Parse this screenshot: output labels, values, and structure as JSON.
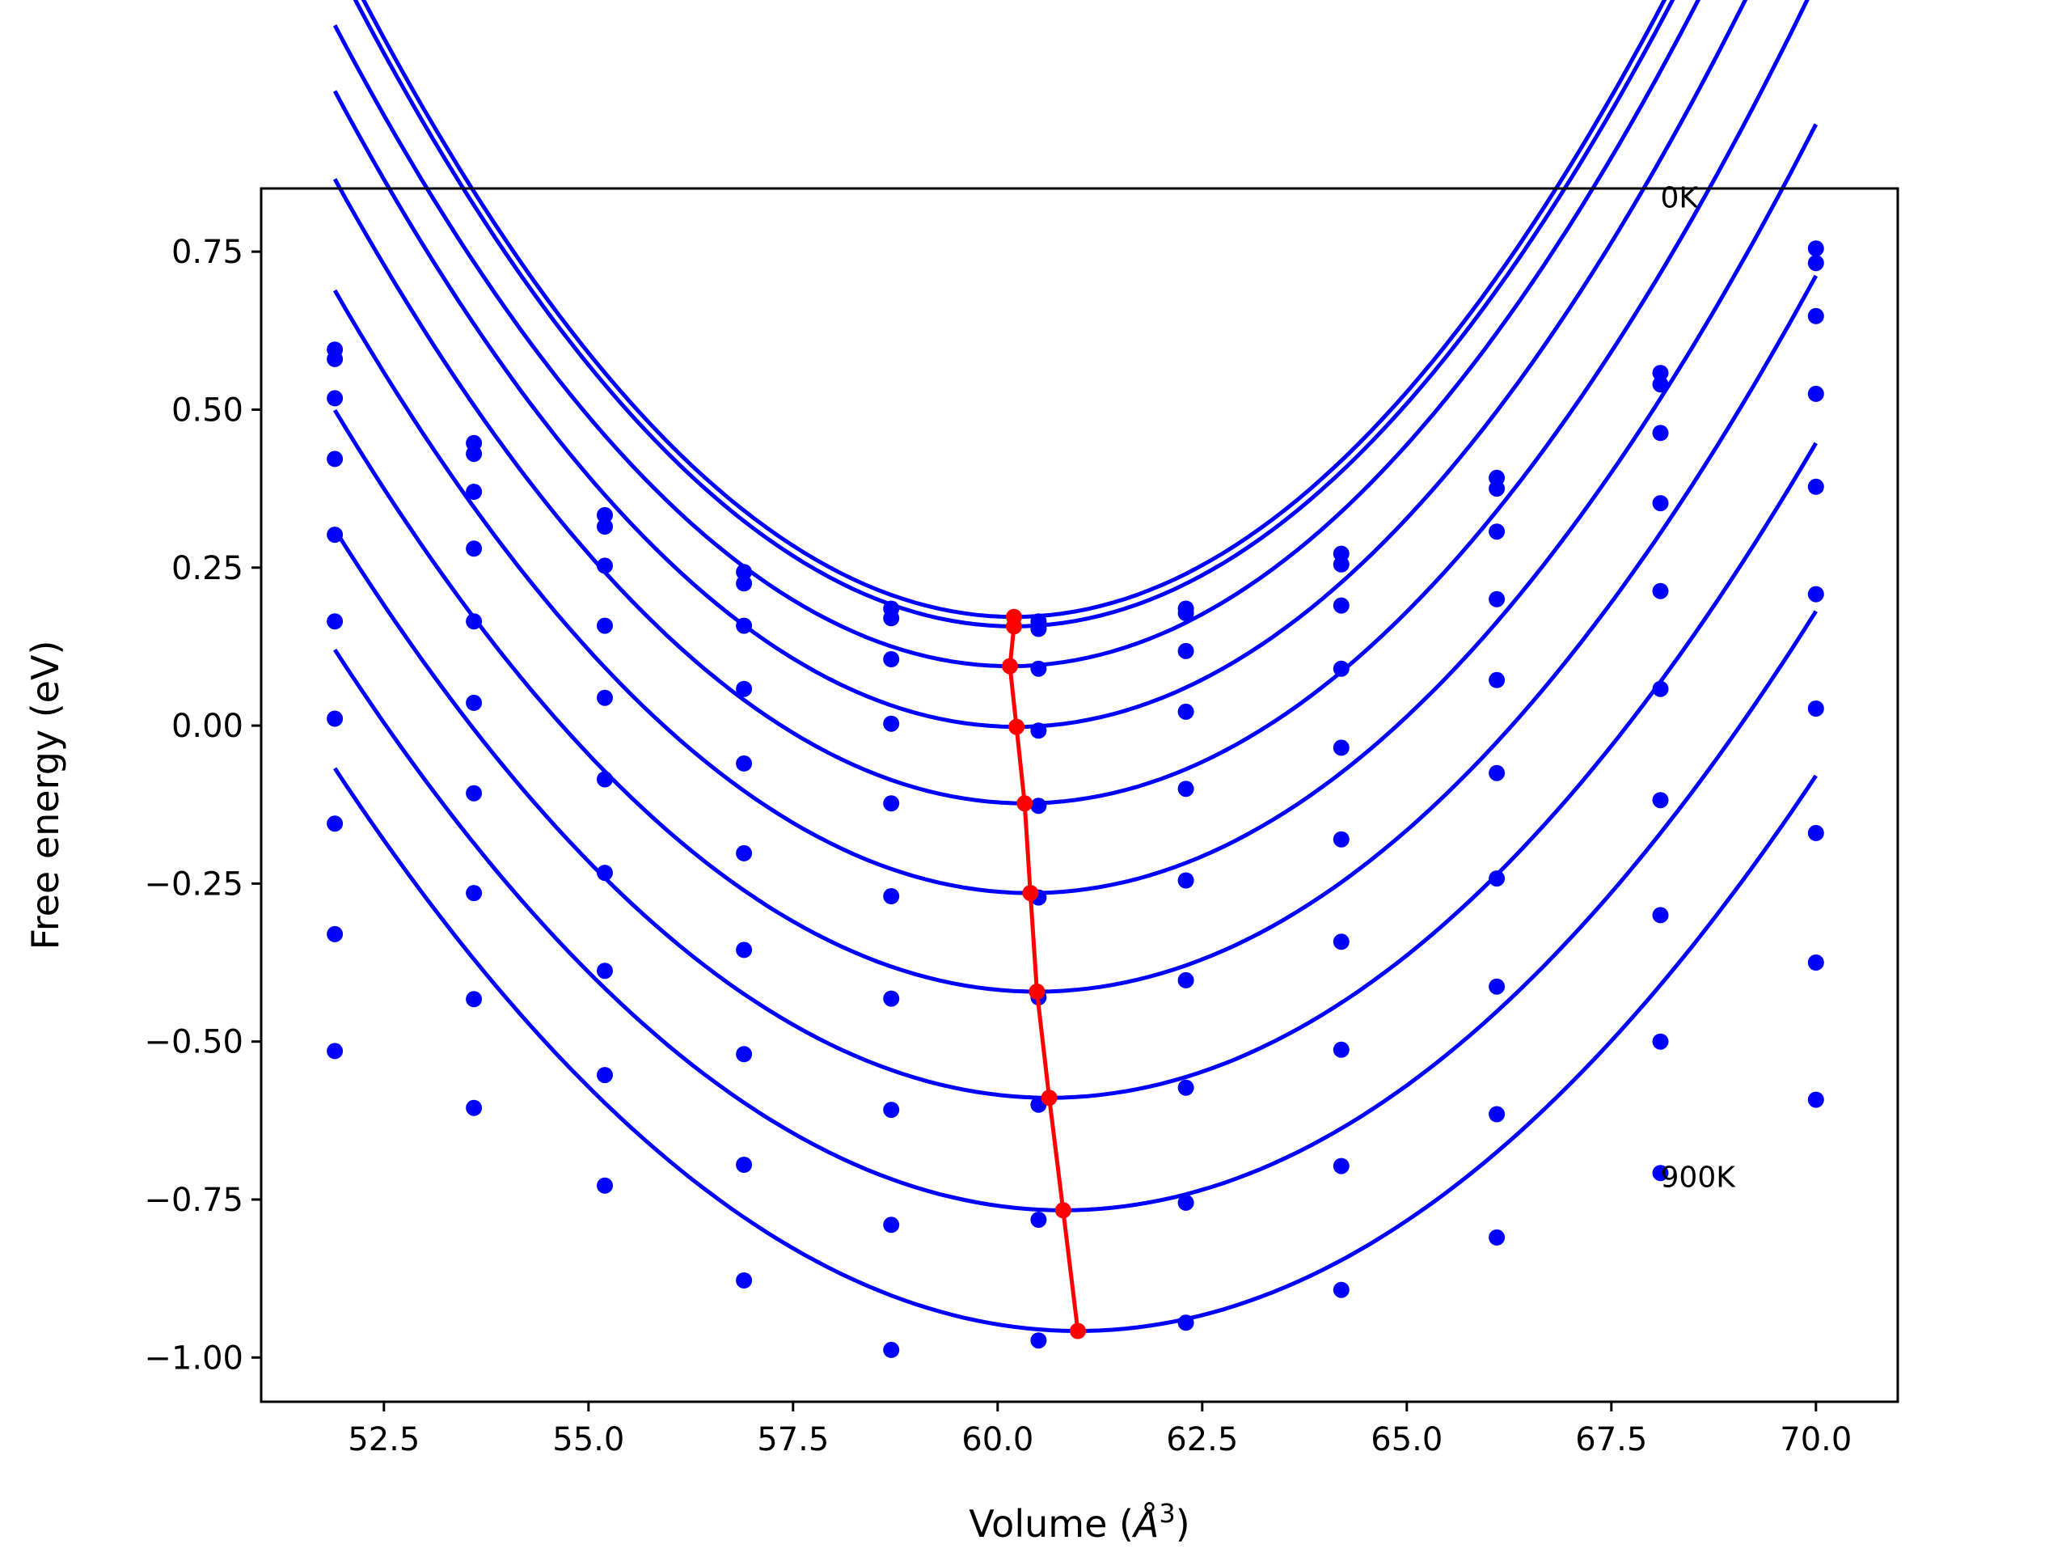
{
  "chart_data": {
    "type": "scatter",
    "title": "",
    "xlabel": "Volume (",
    "xlabel_symbol": "Å",
    "xlabel_exponent": "3",
    "xlabel_close": ")",
    "ylabel": "Free energy (eV)",
    "xlim": [
      51.0,
      71.0
    ],
    "ylim": [
      -1.07,
      0.85
    ],
    "xticks": [
      52.5,
      55.0,
      57.5,
      60.0,
      62.5,
      65.0,
      67.5,
      70.0
    ],
    "xtick_labels": [
      "52.5",
      "55.0",
      "57.5",
      "60.0",
      "62.5",
      "65.0",
      "67.5",
      "70.0"
    ],
    "yticks": [
      0.75,
      0.5,
      0.25,
      0.0,
      -0.25,
      -0.5,
      -0.75,
      -1.0
    ],
    "ytick_labels": [
      "0.75",
      "0.50",
      "0.25",
      "0.00",
      "−0.25",
      "−0.50",
      "−0.75",
      "−1.00"
    ],
    "grid": false,
    "legend": "none",
    "colors": {
      "data": "#0000ff",
      "minimum_path": "#ff0000",
      "axis": "#000000"
    },
    "annotations": [
      {
        "text": "0K",
        "x": 68.1,
        "y": 0.82
      },
      {
        "text": "900K",
        "x": 68.1,
        "y": -0.73
      }
    ],
    "volumes": [
      51.9,
      53.6,
      55.2,
      56.9,
      58.7,
      60.5,
      62.3,
      64.2,
      66.1,
      68.1,
      70.0
    ],
    "series": [
      {
        "values": [
          0.595,
          0.447,
          0.333,
          0.243,
          0.185,
          0.165,
          0.185,
          0.272,
          0.392,
          0.558,
          0.755
        ],
        "fit": {
          "a": 0.01545,
          "v0": 60.2,
          "e0": 0.172
        }
      },
      {
        "values": [
          0.58,
          0.43,
          0.315,
          0.225,
          0.17,
          0.153,
          0.178,
          0.255,
          0.375,
          0.54,
          0.732
        ],
        "fit": {
          "a": 0.0153,
          "v0": 60.2,
          "e0": 0.157
        }
      },
      {
        "values": [
          0.518,
          0.37,
          0.253,
          0.158,
          0.105,
          0.09,
          0.118,
          0.19,
          0.307,
          0.463,
          0.648
        ],
        "fit": {
          "a": 0.0149,
          "v0": 60.15,
          "e0": 0.094
        }
      },
      {
        "values": [
          0.422,
          0.28,
          0.158,
          0.058,
          0.003,
          -0.008,
          0.022,
          0.09,
          0.2,
          0.352,
          0.525
        ],
        "fit": {
          "a": 0.0145,
          "v0": 60.23,
          "e0": -0.002
        }
      },
      {
        "values": [
          0.302,
          0.165,
          0.044,
          -0.06,
          -0.123,
          -0.127,
          -0.1,
          -0.035,
          0.072,
          0.213,
          0.378
        ],
        "fit": {
          "a": 0.0139,
          "v0": 60.33,
          "e0": -0.123
        }
      },
      {
        "values": [
          0.165,
          0.036,
          -0.085,
          -0.202,
          -0.27,
          -0.272,
          -0.245,
          -0.18,
          -0.075,
          0.058,
          0.208
        ],
        "fit": {
          "a": 0.0132,
          "v0": 60.4,
          "e0": -0.265
        }
      },
      {
        "values": [
          0.011,
          -0.107,
          -0.233,
          -0.355,
          -0.432,
          -0.43,
          -0.403,
          -0.342,
          -0.242,
          -0.118,
          0.027
        ],
        "fit": {
          "a": 0.0125,
          "v0": 60.48,
          "e0": -0.421
        }
      },
      {
        "values": [
          -0.155,
          -0.265,
          -0.388,
          -0.52,
          -0.608,
          -0.6,
          -0.573,
          -0.513,
          -0.413,
          -0.3,
          -0.17
        ],
        "fit": {
          "a": 0.0118,
          "v0": 60.63,
          "e0": -0.589
        }
      },
      {
        "values": [
          -0.33,
          -0.433,
          -0.553,
          -0.695,
          -0.79,
          -0.782,
          -0.755,
          -0.697,
          -0.615,
          -0.5,
          -0.375
        ],
        "fit": {
          "a": 0.0112,
          "v0": 60.8,
          "e0": -0.767
        }
      },
      {
        "values": [
          -0.515,
          -0.605,
          -0.728,
          -0.878,
          -0.988,
          -0.973,
          -0.945,
          -0.893,
          -0.81,
          -0.708,
          -0.592
        ],
        "fit": {
          "a": 0.0108,
          "v0": 60.98,
          "e0": -0.958
        }
      }
    ],
    "minimum_path": {
      "x": [
        60.2,
        60.2,
        60.15,
        60.23,
        60.33,
        60.4,
        60.48,
        60.63,
        60.8,
        60.98
      ],
      "y": [
        0.172,
        0.157,
        0.094,
        -0.002,
        -0.123,
        -0.265,
        -0.421,
        -0.589,
        -0.767,
        -0.958
      ]
    }
  }
}
